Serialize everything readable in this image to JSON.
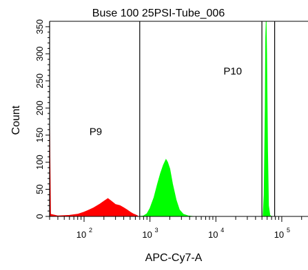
{
  "chart_data": {
    "type": "area",
    "title": "Buse 100 25PSI-Tube_006",
    "xlabel": "APC-Cy7-A",
    "ylabel": "Count",
    "x_scale": "log",
    "xlim": [
      30,
      250000
    ],
    "ylim": [
      0,
      360
    ],
    "y_ticks": [
      0,
      50,
      100,
      150,
      200,
      250,
      300,
      350
    ],
    "y_tick_labels": [
      "0",
      "50",
      "100",
      "150",
      "200",
      "250",
      "300",
      "350"
    ],
    "x_ticks": [
      100,
      1000,
      10000,
      100000
    ],
    "x_tick_labels": [
      {
        "base": "10",
        "exp": "2"
      },
      {
        "base": "10",
        "exp": "3"
      },
      {
        "base": "10",
        "exp": "4"
      },
      {
        "base": "10",
        "exp": "5"
      }
    ],
    "grid": false,
    "series": [
      {
        "color": "#ff0000",
        "points": [
          [
            30,
            170
          ],
          [
            31,
            4
          ],
          [
            40,
            1
          ],
          [
            60,
            2
          ],
          [
            80,
            4
          ],
          [
            100,
            8
          ],
          [
            120,
            12
          ],
          [
            140,
            16
          ],
          [
            170,
            22
          ],
          [
            200,
            28
          ],
          [
            230,
            33
          ],
          [
            260,
            28
          ],
          [
            300,
            22
          ],
          [
            350,
            20
          ],
          [
            400,
            16
          ],
          [
            450,
            12
          ],
          [
            500,
            8
          ],
          [
            550,
            5
          ],
          [
            600,
            3
          ],
          [
            650,
            1
          ]
        ]
      },
      {
        "color": "#00ff00",
        "points": [
          [
            700,
            0
          ],
          [
            800,
            1
          ],
          [
            900,
            5
          ],
          [
            1000,
            15
          ],
          [
            1150,
            35
          ],
          [
            1300,
            60
          ],
          [
            1450,
            80
          ],
          [
            1600,
            95
          ],
          [
            1750,
            105
          ],
          [
            1850,
            100
          ],
          [
            2000,
            88
          ],
          [
            2200,
            60
          ],
          [
            2500,
            30
          ],
          [
            2800,
            12
          ],
          [
            3200,
            4
          ],
          [
            3800,
            1
          ],
          [
            4500,
            0
          ]
        ]
      },
      {
        "color": "#00ff00",
        "points": [
          [
            52000,
            0
          ],
          [
            54000,
            40
          ],
          [
            56000,
            200
          ],
          [
            57000,
            330
          ],
          [
            58000,
            360
          ],
          [
            59000,
            300
          ],
          [
            61000,
            120
          ],
          [
            63000,
            20
          ],
          [
            66000,
            2
          ],
          [
            70000,
            0
          ]
        ]
      }
    ],
    "gates": [
      {
        "name": "P9",
        "x_range": [
          30,
          700
        ]
      },
      {
        "name": "P10",
        "x_range": [
          50000,
          78000
        ]
      }
    ],
    "gate_labels": [
      {
        "text": "P9",
        "x": 150,
        "y": 150
      },
      {
        "text": "P10",
        "x": 18000,
        "y": 262
      }
    ]
  }
}
